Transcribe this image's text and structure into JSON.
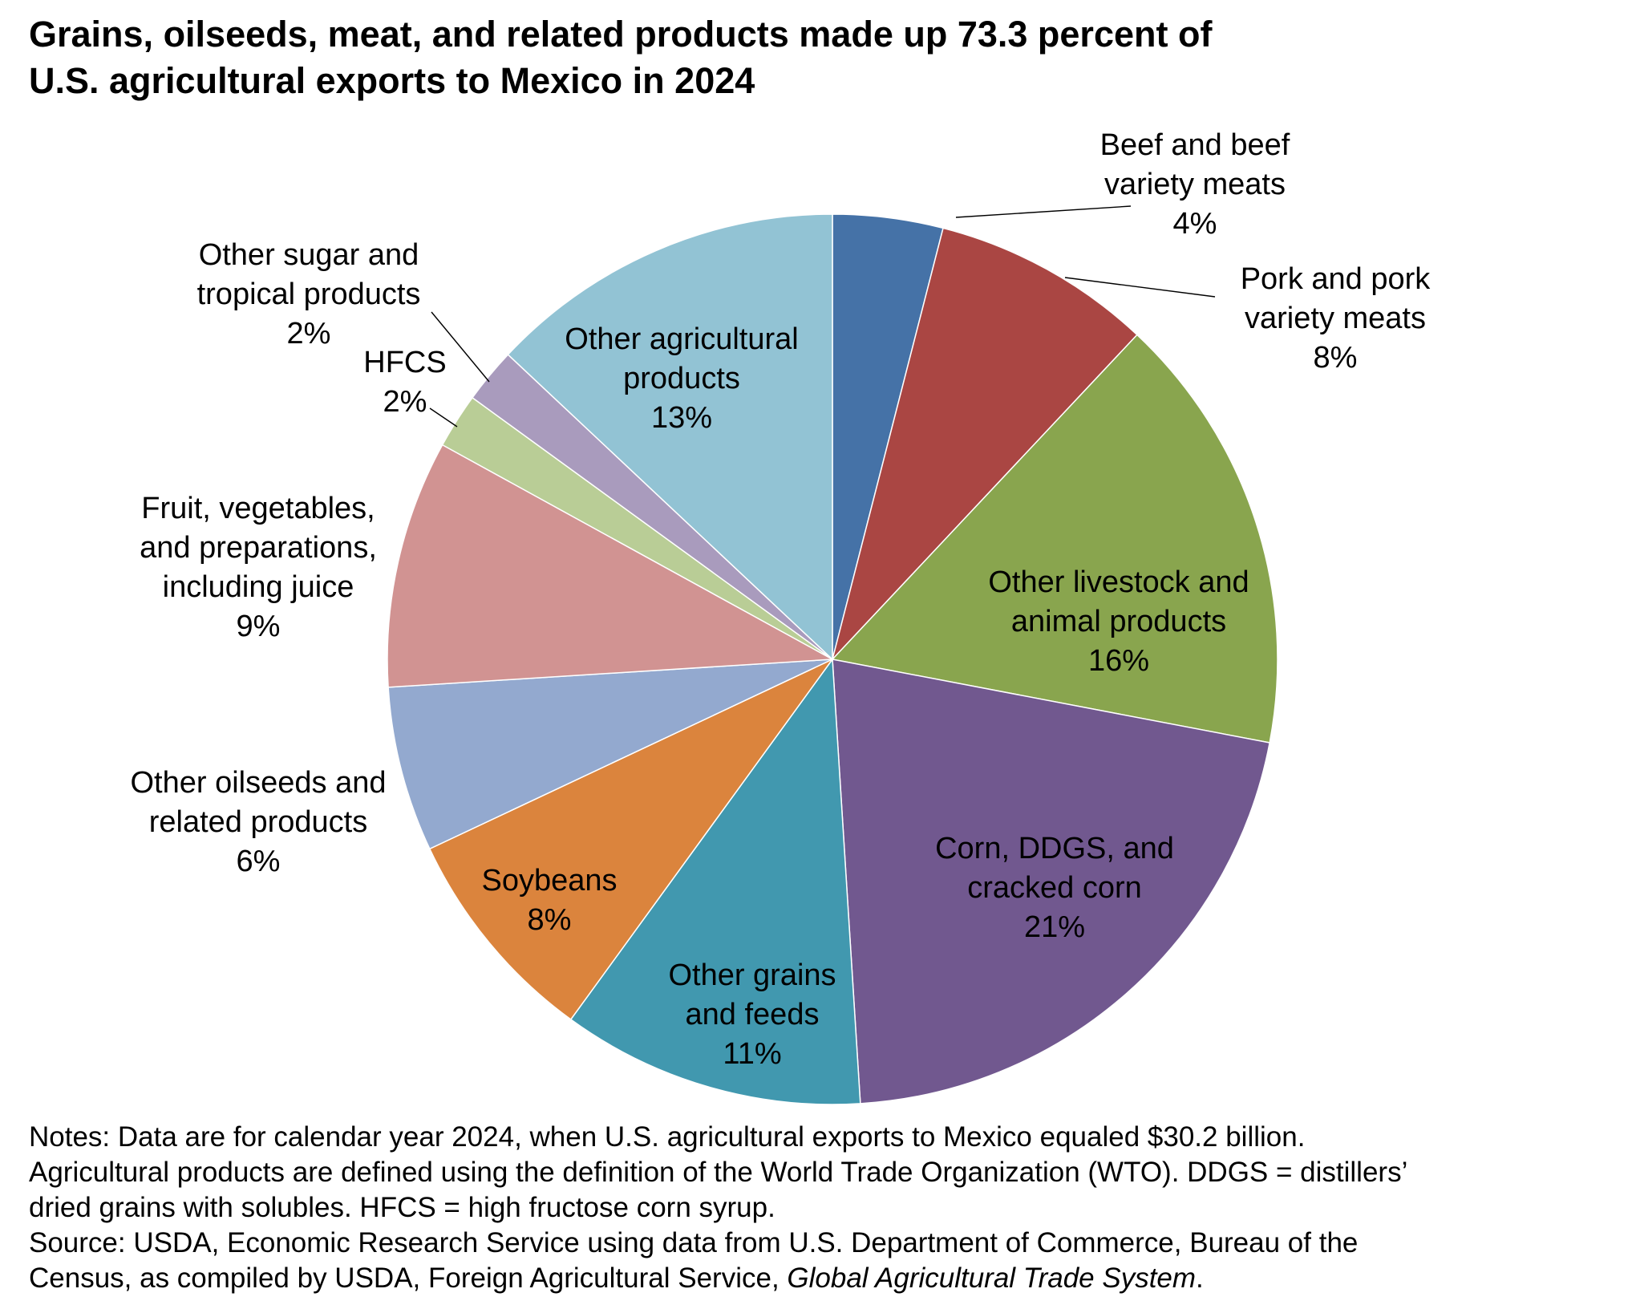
{
  "title": {
    "line1": "Grains, oilseeds, meat, and related products made up 73.3 percent of",
    "line2": "U.S. agricultural exports to Mexico in 2024"
  },
  "chart_data": {
    "type": "pie",
    "title": "Grains, oilseeds, meat, and related products made up 73.3 percent of U.S. agricultural exports to Mexico in 2024",
    "start": "12 o'clock",
    "direction": "clockwise",
    "slices": [
      {
        "label": [
          "Beef and beef",
          "variety meats"
        ],
        "value": 4,
        "display": "4%",
        "color": "#4572a7"
      },
      {
        "label": [
          "Pork and pork",
          "variety meats"
        ],
        "value": 8,
        "display": "8%",
        "color": "#aa4643"
      },
      {
        "label": [
          "Other livestock and",
          "animal products"
        ],
        "value": 16,
        "display": "16%",
        "color": "#89a54e"
      },
      {
        "label": [
          "Corn, DDGS, and",
          "cracked corn"
        ],
        "value": 21,
        "display": "21%",
        "color": "#71588f"
      },
      {
        "label": [
          "Other grains",
          "and feeds"
        ],
        "value": 11,
        "display": "11%",
        "color": "#4198af"
      },
      {
        "label": [
          "Soybeans"
        ],
        "value": 8,
        "display": "8%",
        "color": "#db843d"
      },
      {
        "label": [
          "Other oilseeds and",
          "related products"
        ],
        "value": 6,
        "display": "6%",
        "color": "#93a9cf"
      },
      {
        "label": [
          "Fruit, vegetables,",
          "and preparations,",
          "including juice"
        ],
        "value": 9,
        "display": "9%",
        "color": "#d19392"
      },
      {
        "label": [
          "HFCS"
        ],
        "value": 2,
        "display": "2%",
        "color": "#b9cd96"
      },
      {
        "label": [
          "Other sugar and",
          "tropical products"
        ],
        "value": 2,
        "display": "2%",
        "color": "#a99bbd"
      },
      {
        "label": [
          "Other agricultural",
          "products"
        ],
        "value": 13,
        "display": "13%",
        "color": "#92c3d4"
      }
    ]
  },
  "notes": {
    "line1": "Notes: Data are for calendar year 2024, when U.S. agricultural exports to Mexico equaled $30.2 billion.",
    "line2": "Agricultural products are defined using the definition of the World Trade Organization (WTO). DDGS = distillers’",
    "line3": "dried grains with solubles. HFCS = high fructose corn syrup.",
    "line4": "Source: USDA, Economic Research Service using data from U.S. Department of Commerce, Bureau of the",
    "line5_a": "Census, as compiled by USDA, Foreign Agricultural Service, ",
    "line5_b": "Global Agricultural Trade System",
    "line5_c": "."
  }
}
